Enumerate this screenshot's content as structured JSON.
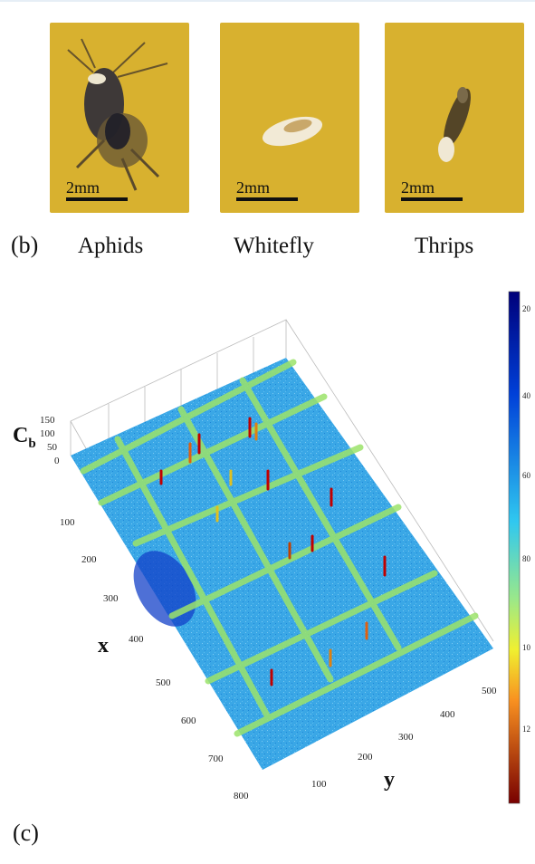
{
  "panel_b": {
    "tag": "(b)",
    "insects": [
      {
        "name": "Aphids",
        "scale": "2mm"
      },
      {
        "name": "Whitefly",
        "scale": "2mm"
      },
      {
        "name": "Thrips",
        "scale": "2mm"
      }
    ]
  },
  "panel_c": {
    "tag": "(c)",
    "zlabel_main": "C",
    "zlabel_sub": "b",
    "xlabel": "x",
    "ylabel": "y",
    "z_ticks": [
      "150",
      "100",
      "50",
      "0"
    ],
    "x_ticks": [
      "100",
      "200",
      "300",
      "400",
      "500",
      "600",
      "700",
      "800"
    ],
    "y_ticks": [
      "100",
      "200",
      "300",
      "400",
      "500"
    ],
    "colorbar_ticks": [
      "20",
      "40",
      "60",
      "80",
      "10",
      "12"
    ],
    "colors": {
      "panel_background": "#d8b12f",
      "surface_low": "#38a8e8",
      "surface_high": "#c00000",
      "grid_ridge": "#9ce36a"
    }
  }
}
